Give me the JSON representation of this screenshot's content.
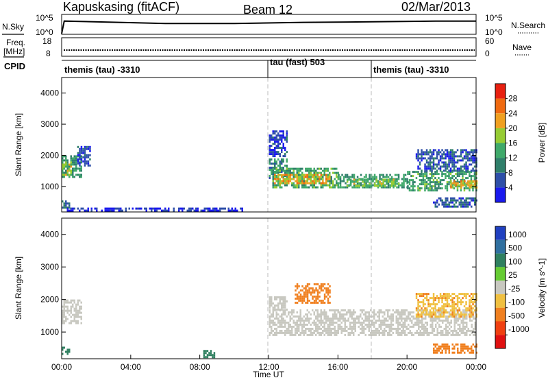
{
  "header": {
    "station": "Kapuskasing (fitACF)",
    "beam": "Beam 12",
    "date": "02/Mar/2013"
  },
  "noise_panel": {
    "left_label": "N.Sky",
    "right_label": "N.Search",
    "left_ticks": [
      "10^5",
      "10^0"
    ],
    "right_ticks": [
      "10^5",
      "10^0"
    ]
  },
  "freq_panel": {
    "left_label_top": "Freq.",
    "left_label_bottom": "[MHz]",
    "right_label": "Nave",
    "left_ticks": [
      "18",
      "8"
    ],
    "right_ticks": [
      "60",
      "0"
    ]
  },
  "cpid": {
    "label": "CPID",
    "segments": [
      {
        "name": "themis (tau) -3310",
        "start_hour": 0,
        "end_hour": 12
      },
      {
        "name": "tau (fast) 503",
        "start_hour": 12,
        "end_hour": 18
      },
      {
        "name": "themis (tau) -3310",
        "start_hour": 18,
        "end_hour": 24
      }
    ]
  },
  "colors": {
    "power_scale": [
      "#1a1aee",
      "#2e4fa8",
      "#2f7f6a",
      "#3fa96a",
      "#96cc33",
      "#f0a020",
      "#f06a10",
      "#e82010"
    ],
    "velocity_scale": [
      "#2040c0",
      "#3070a0",
      "#2f8060",
      "#66cc33",
      "#c8c8c0",
      "#f0c040",
      "#f08020",
      "#f04010",
      "#e01010"
    ],
    "ground_scatter": "#c8c8c0"
  },
  "chart_data": [
    {
      "type": "line",
      "title": "N.Sky",
      "x_range_hours": [
        0,
        24
      ],
      "series": [
        {
          "name": "N.Sky",
          "x": [
            0,
            0.15,
            6,
            10,
            14,
            18,
            22,
            24
          ],
          "values": [
            0.1,
            10000.0,
            1000.0,
            1000.0,
            3000.0,
            5000.0,
            10000.0,
            10000.0
          ]
        }
      ]
    },
    {
      "type": "line",
      "title": "Freq.",
      "x_range_hours": [
        0,
        24
      ],
      "series": [
        {
          "name": "Freq.",
          "x": [
            0,
            24
          ],
          "values": [
            11,
            11
          ]
        }
      ]
    },
    {
      "type": "heatmap",
      "title": "Power",
      "xlabel": "Time UT",
      "ylabel": "Slant Range [km]",
      "colorbar_label": "Power [dB]",
      "xlim": [
        0,
        24
      ],
      "ylim": [
        180,
        4500
      ],
      "x_tick_labels": [
        "00:00",
        "04:00",
        "08:00",
        "12:00",
        "16:00",
        "20:00",
        "00:00"
      ],
      "y_ticks": [
        1000,
        2000,
        3000,
        4000
      ],
      "colorbar_ticks": [
        4,
        8,
        12,
        16,
        20,
        24,
        28
      ],
      "colorbar_range": [
        0,
        32
      ],
      "regions": [
        {
          "t0": 0.0,
          "t1": 1.1,
          "r0": 1300,
          "r1": 2000,
          "level": 12
        },
        {
          "t0": 0.0,
          "t1": 0.5,
          "r0": 1400,
          "r1": 1800,
          "level": 18
        },
        {
          "t0": 0.9,
          "t1": 1.6,
          "r0": 1700,
          "r1": 2300,
          "level": 6
        },
        {
          "t0": 0.0,
          "t1": 0.4,
          "r0": 300,
          "r1": 550,
          "level": 8
        },
        {
          "t0": 0.2,
          "t1": 10.5,
          "r0": 200,
          "r1": 320,
          "level": 4
        },
        {
          "t0": 12.0,
          "t1": 13.0,
          "r0": 1300,
          "r1": 1900,
          "level": 10
        },
        {
          "t0": 12.2,
          "t1": 16.0,
          "r0": 1000,
          "r1": 1600,
          "level": 14
        },
        {
          "t0": 12.3,
          "t1": 15.5,
          "r0": 1100,
          "r1": 1400,
          "level": 22
        },
        {
          "t0": 16.0,
          "t1": 20.0,
          "r0": 950,
          "r1": 1400,
          "level": 12
        },
        {
          "t0": 16.5,
          "t1": 19.5,
          "r0": 1050,
          "r1": 1250,
          "level": 17
        },
        {
          "t0": 20.0,
          "t1": 24.0,
          "r0": 900,
          "r1": 1500,
          "level": 13
        },
        {
          "t0": 22.5,
          "t1": 24.0,
          "r0": 1000,
          "r1": 1200,
          "level": 21
        },
        {
          "t0": 20.5,
          "t1": 24.0,
          "r0": 1500,
          "r1": 2200,
          "level": 6
        },
        {
          "t0": 21.5,
          "t1": 24.0,
          "r0": 350,
          "r1": 650,
          "level": 7
        },
        {
          "t0": 12.0,
          "t1": 13.0,
          "r0": 2000,
          "r1": 2800,
          "level": 5
        }
      ]
    },
    {
      "type": "heatmap",
      "title": "Velocity",
      "xlabel": "Time UT",
      "ylabel": "Slant Range [km]",
      "colorbar_label": "Velocity [m s^-1]",
      "xlim": [
        0,
        24
      ],
      "ylim": [
        180,
        4500
      ],
      "x_tick_labels": [
        "00:00",
        "04:00",
        "08:00",
        "12:00",
        "16:00",
        "20:00",
        "00:00"
      ],
      "y_ticks": [
        1000,
        2000,
        3000,
        4000
      ],
      "colorbar_ticks": [
        1000,
        500,
        100,
        25,
        -25,
        -100,
        -500,
        -1000
      ],
      "regions": [
        {
          "t0": 0.0,
          "t1": 1.1,
          "r0": 1300,
          "r1": 2000,
          "value": 0
        },
        {
          "t0": 0.0,
          "t1": 0.4,
          "r0": 300,
          "r1": 550,
          "value": 150
        },
        {
          "t0": 8.2,
          "t1": 8.8,
          "r0": 250,
          "r1": 450,
          "value": 400
        },
        {
          "t0": 12.0,
          "t1": 24.0,
          "r0": 900,
          "r1": 1700,
          "value": 0
        },
        {
          "t0": 12.0,
          "t1": 13.0,
          "r0": 1700,
          "r1": 2100,
          "value": 0
        },
        {
          "t0": 13.5,
          "t1": 15.5,
          "r0": 1900,
          "r1": 2500,
          "value": -300
        },
        {
          "t0": 20.5,
          "t1": 24.0,
          "r0": 1500,
          "r1": 2200,
          "value": -80
        },
        {
          "t0": 21.5,
          "t1": 24.0,
          "r0": 350,
          "r1": 650,
          "value": -200
        }
      ]
    }
  ]
}
